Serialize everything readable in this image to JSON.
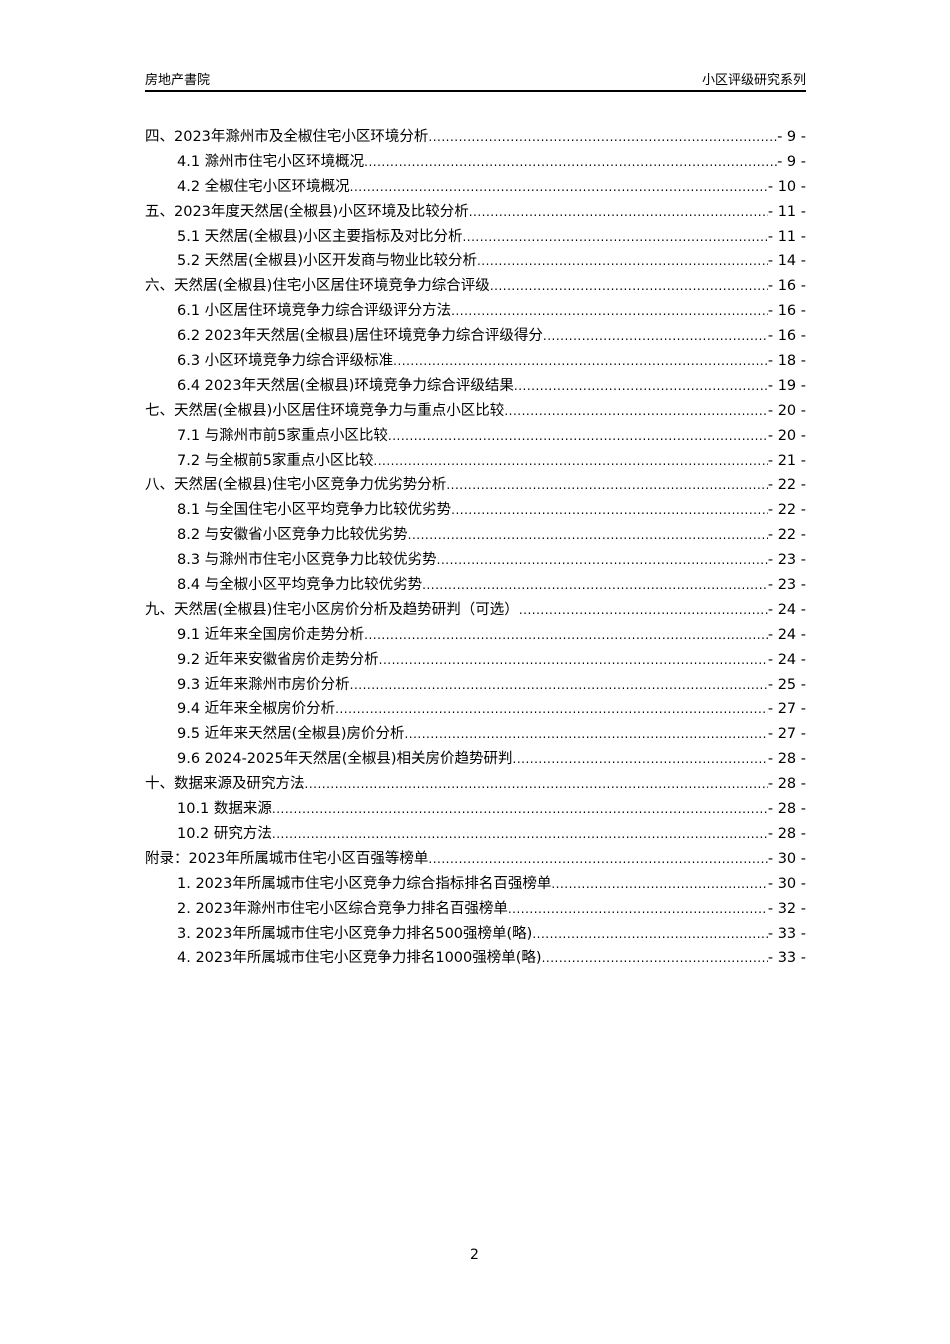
{
  "header": {
    "left": "房地产書院",
    "right": "小区评级研究系列"
  },
  "toc": [
    {
      "level": 1,
      "title": "四、2023年滁州市及全椒住宅小区环境分析",
      "page": "- 9 -"
    },
    {
      "level": 2,
      "title": "4.1 滁州市住宅小区环境概况",
      "page": "- 9 -"
    },
    {
      "level": 2,
      "title": "4.2 全椒住宅小区环境概况",
      "page": "- 10 -"
    },
    {
      "level": 1,
      "title": "五、2023年度天然居(全椒县)小区环境及比较分析",
      "page": "- 11 -"
    },
    {
      "level": 2,
      "title": "5.1 天然居(全椒县)小区主要指标及对比分析",
      "page": "- 11 -"
    },
    {
      "level": 2,
      "title": "5.2 天然居(全椒县)小区开发商与物业比较分析",
      "page": "- 14 -"
    },
    {
      "level": 1,
      "title": "六、天然居(全椒县)住宅小区居住环境竞争力综合评级",
      "page": "- 16 -"
    },
    {
      "level": 2,
      "title": "6.1 小区居住环境竞争力综合评级评分方法",
      "page": "- 16 -"
    },
    {
      "level": 2,
      "title": "6.2 2023年天然居(全椒县)居住环境竞争力综合评级得分",
      "page": "- 16 -"
    },
    {
      "level": 2,
      "title": "6.3 小区环境竞争力综合评级标准",
      "page": "- 18 -"
    },
    {
      "level": 2,
      "title": "6.4 2023年天然居(全椒县)环境竞争力综合评级结果",
      "page": "- 19 -"
    },
    {
      "level": 1,
      "title": "七、天然居(全椒县)小区居住环境竞争力与重点小区比较",
      "page": "- 20 -"
    },
    {
      "level": 2,
      "title": "7.1 与滁州市前5家重点小区比较",
      "page": "- 20 -"
    },
    {
      "level": 2,
      "title": "7.2 与全椒前5家重点小区比较",
      "page": "- 21 -"
    },
    {
      "level": 1,
      "title": "八、天然居(全椒县)住宅小区竞争力优劣势分析",
      "page": "- 22 -"
    },
    {
      "level": 2,
      "title": "8.1 与全国住宅小区平均竞争力比较优劣势",
      "page": "- 22 -"
    },
    {
      "level": 2,
      "title": "8.2 与安徽省小区竞争力比较优劣势",
      "page": "- 22 -"
    },
    {
      "level": 2,
      "title": "8.3 与滁州市住宅小区竞争力比较优劣势",
      "page": "- 23 -"
    },
    {
      "level": 2,
      "title": "8.4 与全椒小区平均竞争力比较优劣势",
      "page": "- 23 -"
    },
    {
      "level": 1,
      "title": "九、天然居(全椒县)住宅小区房价分析及趋势研判（可选）",
      "page": "- 24 -"
    },
    {
      "level": 2,
      "title": "9.1 近年来全国房价走势分析",
      "page": "- 24 -"
    },
    {
      "level": 2,
      "title": "9.2 近年来安徽省房价走势分析",
      "page": "- 24 -"
    },
    {
      "level": 2,
      "title": "9.3 近年来滁州市房价分析",
      "page": "- 25 -"
    },
    {
      "level": 2,
      "title": "9.4 近年来全椒房价分析",
      "page": "- 27 -"
    },
    {
      "level": 2,
      "title": "9.5 近年来天然居(全椒县)房价分析",
      "page": "- 27 -"
    },
    {
      "level": 2,
      "title": "9.6 2024-2025年天然居(全椒县)相关房价趋势研判",
      "page": "- 28 -"
    },
    {
      "level": 1,
      "title": "十、数据来源及研究方法",
      "page": "- 28 -"
    },
    {
      "level": 2,
      "title": "10.1 数据来源",
      "page": "- 28 -"
    },
    {
      "level": 2,
      "title": "10.2 研究方法",
      "page": "- 28 -"
    },
    {
      "level": 1,
      "title": "附录：2023年所属城市住宅小区百强等榜单",
      "page": "- 30 -"
    },
    {
      "level": 2,
      "title": "1. 2023年所属城市住宅小区竞争力综合指标排名百强榜单",
      "page": "- 30 -"
    },
    {
      "level": 2,
      "title": "2. 2023年滁州市住宅小区综合竞争力排名百强榜单",
      "page": "- 32 -"
    },
    {
      "level": 2,
      "title": "3. 2023年所属城市住宅小区竞争力排名500强榜单(略)",
      "page": "- 33 -"
    },
    {
      "level": 2,
      "title": "4. 2023年所属城市住宅小区竞争力排名1000强榜单(略)",
      "page": "- 33 -"
    }
  ],
  "footer": {
    "page_number": "2"
  }
}
